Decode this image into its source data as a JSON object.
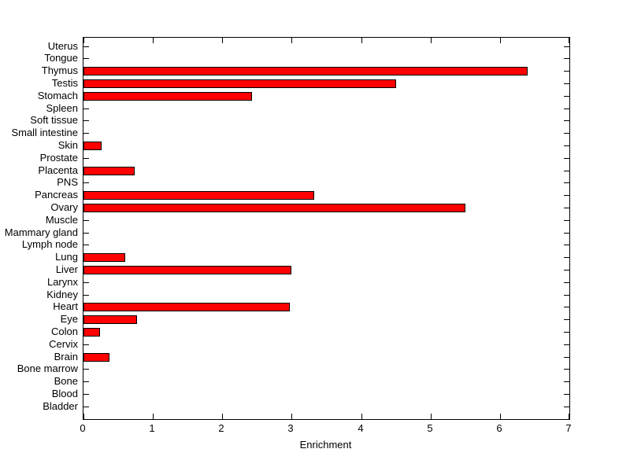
{
  "chart_data": {
    "type": "bar",
    "orientation": "horizontal",
    "title": "",
    "xlabel": "Enrichment",
    "ylabel": "",
    "xlim": [
      0,
      7
    ],
    "xticks": [
      0,
      1,
      2,
      3,
      4,
      5,
      6,
      7
    ],
    "grid": false,
    "legend_position": "none",
    "categories": [
      "Uterus",
      "Tongue",
      "Thymus",
      "Testis",
      "Stomach",
      "Spleen",
      "Soft tissue",
      "Small intestine",
      "Skin",
      "Prostate",
      "Placenta",
      "PNS",
      "Pancreas",
      "Ovary",
      "Muscle",
      "Mammary gland",
      "Lymph node",
      "Lung",
      "Liver",
      "Larynx",
      "Kidney",
      "Heart",
      "Eye",
      "Colon",
      "Cervix",
      "Brain",
      "Bone marrow",
      "Bone",
      "Blood",
      "Bladder"
    ],
    "values": [
      0,
      0,
      6.4,
      4.5,
      2.43,
      0,
      0,
      0,
      0.26,
      0,
      0.74,
      0,
      3.32,
      5.5,
      0,
      0,
      0,
      0.6,
      3.0,
      0,
      0,
      2.97,
      0.77,
      0.24,
      0,
      0.37,
      0,
      0,
      0,
      0
    ],
    "bar_color": "#ff0000",
    "bar_edge_color": "#000000",
    "axis_color": "#000000",
    "background_color": "#ffffff",
    "text_color": "#000000"
  }
}
